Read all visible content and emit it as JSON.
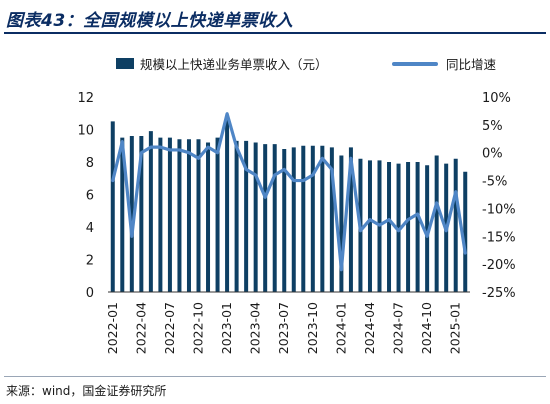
{
  "title": "图表43：全国规模以上快递单票收入",
  "source": "来源：wind，国金证券研究所",
  "colors": {
    "bar": "#0e3f63",
    "line": "#4f86c6",
    "title": "#0b2d63"
  },
  "chart_data": {
    "type": "bar+line",
    "title": "",
    "legend_position": "top",
    "grid": false,
    "categories": [
      "2022-01",
      "2022-02",
      "2022-03",
      "2022-04",
      "2022-05",
      "2022-06",
      "2022-07",
      "2022-08",
      "2022-09",
      "2022-10",
      "2022-11",
      "2022-12",
      "2023-01",
      "2023-02",
      "2023-03",
      "2023-04",
      "2023-05",
      "2023-06",
      "2023-07",
      "2023-08",
      "2023-09",
      "2023-10",
      "2023-11",
      "2023-12",
      "2024-01",
      "2024-02",
      "2024-03",
      "2024-04",
      "2024-05",
      "2024-06",
      "2024-07",
      "2024-08",
      "2024-09",
      "2024-10",
      "2024-11",
      "2024-12",
      "2025-01",
      "2025-02"
    ],
    "tick_labels": [
      "2022-01",
      "2022-04",
      "2022-07",
      "2022-10",
      "2023-01",
      "2023-04",
      "2023-07",
      "2023-10",
      "2024-01",
      "2024-04",
      "2024-07",
      "2024-10",
      "2025-01"
    ],
    "y_left": {
      "ticks": [
        "0",
        "2",
        "4",
        "6",
        "8",
        "10",
        "12"
      ],
      "lim": [
        0,
        12
      ]
    },
    "y_right": {
      "ticks": [
        "10%",
        "5%",
        "0%",
        "-5%",
        "-10%",
        "-15%",
        "-20%",
        "-25%"
      ],
      "lim": [
        -25,
        10
      ]
    },
    "series": [
      {
        "name": "规模以上快递业务单票收入（元）",
        "type": "bar",
        "axis": "left",
        "values": [
          10.5,
          9.5,
          9.6,
          9.6,
          9.9,
          9.5,
          9.5,
          9.4,
          9.4,
          9.4,
          9.2,
          9.5,
          10.6,
          9.3,
          9.3,
          9.2,
          9.1,
          9.1,
          8.8,
          8.9,
          9.0,
          9.0,
          9.0,
          8.9,
          8.4,
          8.9,
          8.2,
          8.1,
          8.1,
          8.0,
          7.9,
          8.0,
          8.0,
          7.8,
          8.4,
          7.9,
          8.2,
          7.4
        ]
      },
      {
        "name": "同比增速",
        "type": "line",
        "axis": "right",
        "values": [
          -5,
          2,
          -15,
          0,
          1,
          1,
          0.5,
          0.5,
          0,
          -1,
          1,
          0,
          7,
          1,
          -3,
          -4,
          -8,
          -4,
          -3,
          -5,
          -5,
          -4,
          -1,
          -3,
          -21,
          -1,
          -14,
          -12,
          -13,
          -12,
          -14,
          -12,
          -11,
          -15,
          -9,
          -14,
          -7,
          -18
        ]
      }
    ]
  }
}
